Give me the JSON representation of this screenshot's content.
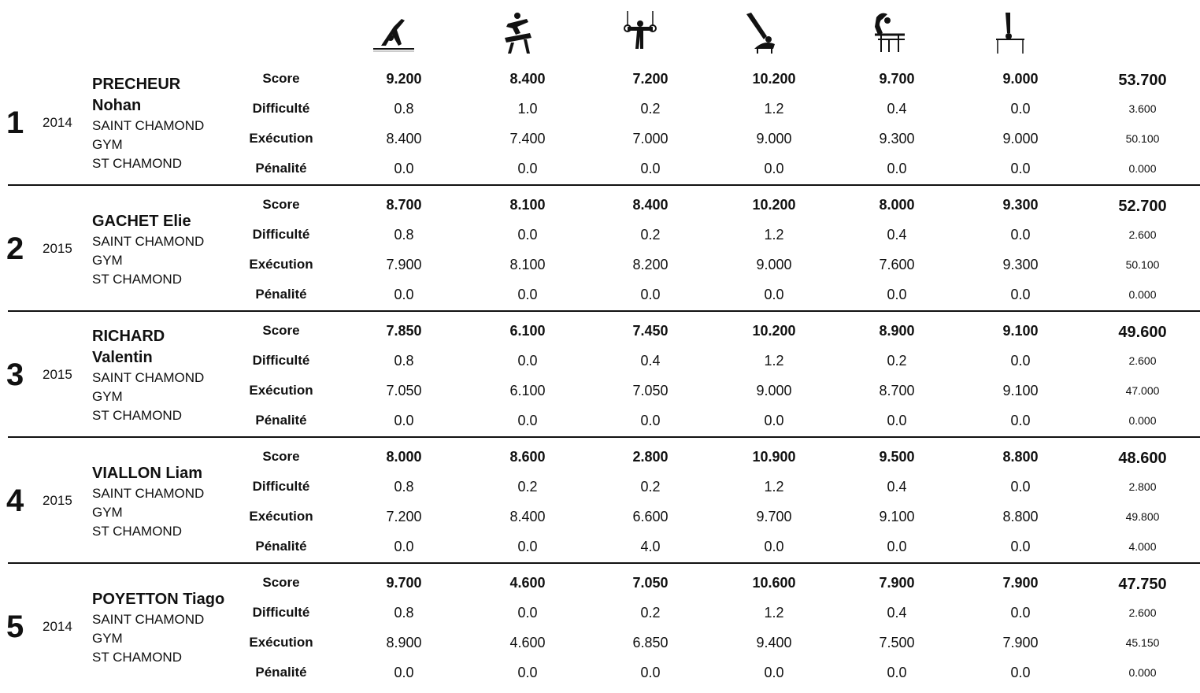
{
  "row_labels": [
    "Score",
    "Difficulté",
    "Exécution",
    "Pénalité"
  ],
  "apparatus_icons": [
    "floor-exercise-icon",
    "pommel-horse-icon",
    "rings-icon",
    "vault-icon",
    "parallel-bars-icon",
    "horizontal-bar-icon"
  ],
  "results": [
    {
      "rank": "1",
      "year": "2014",
      "name_lines": [
        "PRECHEUR",
        "Nohan"
      ],
      "club_lines": [
        "SAINT CHAMOND",
        "GYM",
        "ST CHAMOND"
      ],
      "score": [
        "9.200",
        "8.400",
        "7.200",
        "10.200",
        "9.700",
        "9.000"
      ],
      "difficulty": [
        "0.8",
        "1.0",
        "0.2",
        "1.2",
        "0.4",
        "0.0"
      ],
      "execution": [
        "8.400",
        "7.400",
        "7.000",
        "9.000",
        "9.300",
        "9.000"
      ],
      "penalty": [
        "0.0",
        "0.0",
        "0.0",
        "0.0",
        "0.0",
        "0.0"
      ],
      "total": {
        "score": "53.700",
        "difficulty": "3.600",
        "execution": "50.100",
        "penalty": "0.000"
      }
    },
    {
      "rank": "2",
      "year": "2015",
      "name_lines": [
        "GACHET Elie"
      ],
      "club_lines": [
        "SAINT CHAMOND",
        "GYM",
        "ST CHAMOND"
      ],
      "score": [
        "8.700",
        "8.100",
        "8.400",
        "10.200",
        "8.000",
        "9.300"
      ],
      "difficulty": [
        "0.8",
        "0.0",
        "0.2",
        "1.2",
        "0.4",
        "0.0"
      ],
      "execution": [
        "7.900",
        "8.100",
        "8.200",
        "9.000",
        "7.600",
        "9.300"
      ],
      "penalty": [
        "0.0",
        "0.0",
        "0.0",
        "0.0",
        "0.0",
        "0.0"
      ],
      "total": {
        "score": "52.700",
        "difficulty": "2.600",
        "execution": "50.100",
        "penalty": "0.000"
      }
    },
    {
      "rank": "3",
      "year": "2015",
      "name_lines": [
        "RICHARD",
        "Valentin"
      ],
      "club_lines": [
        "SAINT CHAMOND",
        "GYM",
        "ST CHAMOND"
      ],
      "score": [
        "7.850",
        "6.100",
        "7.450",
        "10.200",
        "8.900",
        "9.100"
      ],
      "difficulty": [
        "0.8",
        "0.0",
        "0.4",
        "1.2",
        "0.2",
        "0.0"
      ],
      "execution": [
        "7.050",
        "6.100",
        "7.050",
        "9.000",
        "8.700",
        "9.100"
      ],
      "penalty": [
        "0.0",
        "0.0",
        "0.0",
        "0.0",
        "0.0",
        "0.0"
      ],
      "total": {
        "score": "49.600",
        "difficulty": "2.600",
        "execution": "47.000",
        "penalty": "0.000"
      }
    },
    {
      "rank": "4",
      "year": "2015",
      "name_lines": [
        "VIALLON Liam"
      ],
      "club_lines": [
        "SAINT CHAMOND",
        "GYM",
        "ST CHAMOND"
      ],
      "score": [
        "8.000",
        "8.600",
        "2.800",
        "10.900",
        "9.500",
        "8.800"
      ],
      "difficulty": [
        "0.8",
        "0.2",
        "0.2",
        "1.2",
        "0.4",
        "0.0"
      ],
      "execution": [
        "7.200",
        "8.400",
        "6.600",
        "9.700",
        "9.100",
        "8.800"
      ],
      "penalty": [
        "0.0",
        "0.0",
        "4.0",
        "0.0",
        "0.0",
        "0.0"
      ],
      "total": {
        "score": "48.600",
        "difficulty": "2.800",
        "execution": "49.800",
        "penalty": "4.000"
      }
    },
    {
      "rank": "5",
      "year": "2014",
      "name_lines": [
        "POYETTON Tiago"
      ],
      "club_lines": [
        "SAINT CHAMOND",
        "GYM",
        "ST CHAMOND"
      ],
      "score": [
        "9.700",
        "4.600",
        "7.050",
        "10.600",
        "7.900",
        "7.900"
      ],
      "difficulty": [
        "0.8",
        "0.0",
        "0.2",
        "1.2",
        "0.4",
        "0.0"
      ],
      "execution": [
        "8.900",
        "4.600",
        "6.850",
        "9.400",
        "7.500",
        "7.900"
      ],
      "penalty": [
        "0.0",
        "0.0",
        "0.0",
        "0.0",
        "0.0",
        "0.0"
      ],
      "total": {
        "score": "47.750",
        "difficulty": "2.600",
        "execution": "45.150",
        "penalty": "0.000"
      }
    }
  ]
}
